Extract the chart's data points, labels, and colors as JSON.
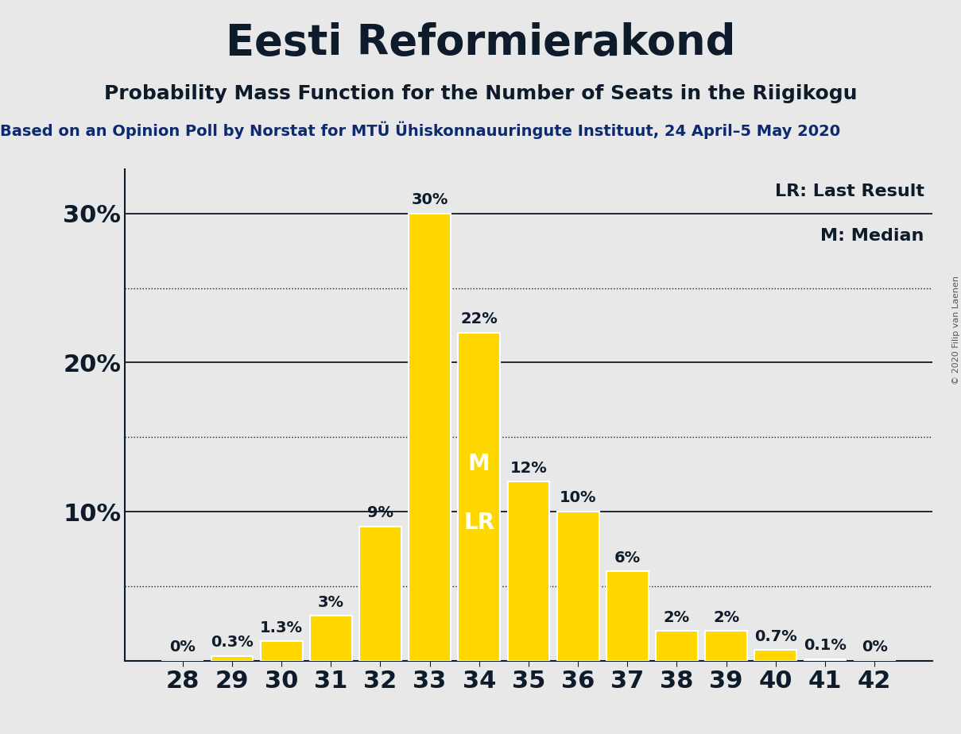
{
  "title": "Eesti Reformierakond",
  "subtitle": "Probability Mass Function for the Number of Seats in the Riigikogu",
  "source_line": "Based on an Opinion Poll by Norstat for MTÜ Ühiskonnauuringute Instituut, 24 April–5 May 2020",
  "copyright": "© 2020 Filip van Laenen",
  "seats": [
    28,
    29,
    30,
    31,
    32,
    33,
    34,
    35,
    36,
    37,
    38,
    39,
    40,
    41,
    42
  ],
  "probabilities": [
    0.0,
    0.3,
    1.3,
    3.0,
    9.0,
    30.0,
    22.0,
    12.0,
    10.0,
    6.0,
    2.0,
    2.0,
    0.7,
    0.1,
    0.0
  ],
  "labels": [
    "0%",
    "0.3%",
    "1.3%",
    "3%",
    "9%",
    "30%",
    "22%",
    "12%",
    "10%",
    "6%",
    "2%",
    "2%",
    "0.7%",
    "0.1%",
    "0%"
  ],
  "bar_color": "#FFD700",
  "bar_edge_color": "#FFFFFF",
  "background_color": "#E8E8E8",
  "median_seat": 34,
  "last_result_seat": 34,
  "median_label": "M",
  "last_result_label": "LR",
  "legend_lr": "LR: Last Result",
  "legend_m": "M: Median",
  "ylim": [
    0,
    33
  ],
  "solid_yticks": [
    10,
    20,
    30
  ],
  "dotted_yticks": [
    5,
    15,
    25
  ],
  "title_fontsize": 38,
  "subtitle_fontsize": 18,
  "source_fontsize": 14,
  "axis_tick_fontsize": 22,
  "bar_label_fontsize": 14,
  "legend_fontsize": 16,
  "inner_label_fontsize": 20,
  "ytick_label_color": "#0d1b2a",
  "title_color": "#0d1b2a",
  "subtitle_color": "#0d1b2a",
  "source_color": "#0d2a6e",
  "copyright_color": "#555555"
}
